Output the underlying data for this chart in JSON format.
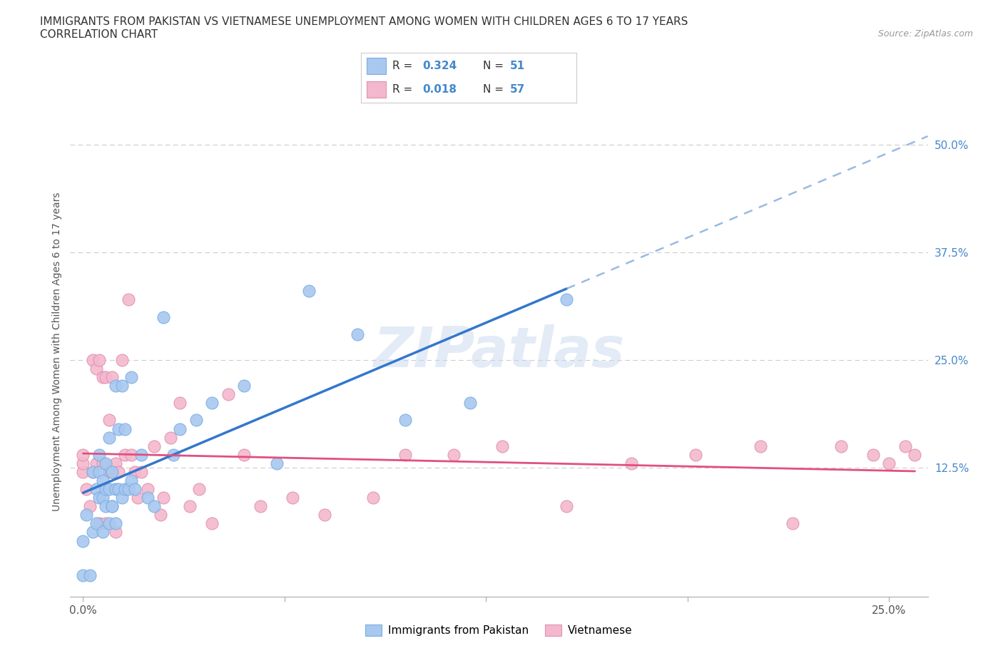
{
  "title_line1": "IMMIGRANTS FROM PAKISTAN VS VIETNAMESE UNEMPLOYMENT AMONG WOMEN WITH CHILDREN AGES 6 TO 17 YEARS",
  "title_line2": "CORRELATION CHART",
  "source_text": "Source: ZipAtlas.com",
  "ylabel": "Unemployment Among Women with Children Ages 6 to 17 years",
  "xmin": -0.004,
  "xmax": 0.262,
  "ymin": -0.025,
  "ymax": 0.545,
  "yticks": [
    0.0,
    0.125,
    0.25,
    0.375,
    0.5
  ],
  "ytick_labels": [
    "",
    "12.5%",
    "25.0%",
    "37.5%",
    "50.0%"
  ],
  "xticks": [
    0.0,
    0.0625,
    0.125,
    0.1875,
    0.25
  ],
  "xtick_labels": [
    "0.0%",
    "",
    "",
    "",
    "25.0%"
  ],
  "pakistan_R": 0.324,
  "pakistan_N": 51,
  "vietnam_R": 0.018,
  "vietnam_N": 57,
  "pakistan_color": "#a8c8f0",
  "pakistan_edge_color": "#7aaee0",
  "vietnam_color": "#f4b8ce",
  "vietnam_edge_color": "#e090b0",
  "pakistan_line_color": "#3377cc",
  "pakistan_dash_color": "#88aedd",
  "vietnam_line_color": "#e05080",
  "watermark_color": "#c8d8f0",
  "background_color": "#ffffff",
  "grid_color": "#cccccc",
  "pakistan_x": [
    0.0,
    0.0,
    0.001,
    0.002,
    0.003,
    0.003,
    0.004,
    0.004,
    0.005,
    0.005,
    0.005,
    0.006,
    0.006,
    0.006,
    0.007,
    0.007,
    0.007,
    0.008,
    0.008,
    0.008,
    0.009,
    0.009,
    0.009,
    0.01,
    0.01,
    0.01,
    0.011,
    0.011,
    0.012,
    0.012,
    0.013,
    0.013,
    0.014,
    0.015,
    0.015,
    0.016,
    0.018,
    0.02,
    0.022,
    0.025,
    0.028,
    0.03,
    0.035,
    0.04,
    0.05,
    0.06,
    0.07,
    0.085,
    0.1,
    0.12,
    0.15
  ],
  "pakistan_y": [
    0.0,
    0.04,
    0.07,
    0.0,
    0.05,
    0.12,
    0.06,
    0.1,
    0.09,
    0.12,
    0.14,
    0.05,
    0.09,
    0.11,
    0.08,
    0.1,
    0.13,
    0.06,
    0.1,
    0.16,
    0.08,
    0.12,
    0.08,
    0.06,
    0.1,
    0.22,
    0.1,
    0.17,
    0.09,
    0.22,
    0.1,
    0.17,
    0.1,
    0.11,
    0.23,
    0.1,
    0.14,
    0.09,
    0.08,
    0.3,
    0.14,
    0.17,
    0.18,
    0.2,
    0.22,
    0.13,
    0.33,
    0.28,
    0.18,
    0.2,
    0.32
  ],
  "vietnam_x": [
    0.0,
    0.0,
    0.0,
    0.001,
    0.002,
    0.003,
    0.003,
    0.004,
    0.004,
    0.005,
    0.005,
    0.006,
    0.006,
    0.007,
    0.007,
    0.008,
    0.008,
    0.009,
    0.009,
    0.01,
    0.01,
    0.011,
    0.012,
    0.013,
    0.014,
    0.015,
    0.016,
    0.017,
    0.018,
    0.02,
    0.022,
    0.024,
    0.025,
    0.027,
    0.03,
    0.033,
    0.036,
    0.04,
    0.045,
    0.05,
    0.055,
    0.065,
    0.075,
    0.09,
    0.1,
    0.115,
    0.13,
    0.15,
    0.17,
    0.19,
    0.21,
    0.22,
    0.235,
    0.245,
    0.25,
    0.255,
    0.258
  ],
  "vietnam_y": [
    0.12,
    0.13,
    0.14,
    0.1,
    0.08,
    0.12,
    0.25,
    0.13,
    0.24,
    0.06,
    0.25,
    0.13,
    0.23,
    0.06,
    0.23,
    0.12,
    0.18,
    0.12,
    0.23,
    0.05,
    0.13,
    0.12,
    0.25,
    0.14,
    0.32,
    0.14,
    0.12,
    0.09,
    0.12,
    0.1,
    0.15,
    0.07,
    0.09,
    0.16,
    0.2,
    0.08,
    0.1,
    0.06,
    0.21,
    0.14,
    0.08,
    0.09,
    0.07,
    0.09,
    0.14,
    0.14,
    0.15,
    0.08,
    0.13,
    0.14,
    0.15,
    0.06,
    0.15,
    0.14,
    0.13,
    0.15,
    0.14
  ]
}
